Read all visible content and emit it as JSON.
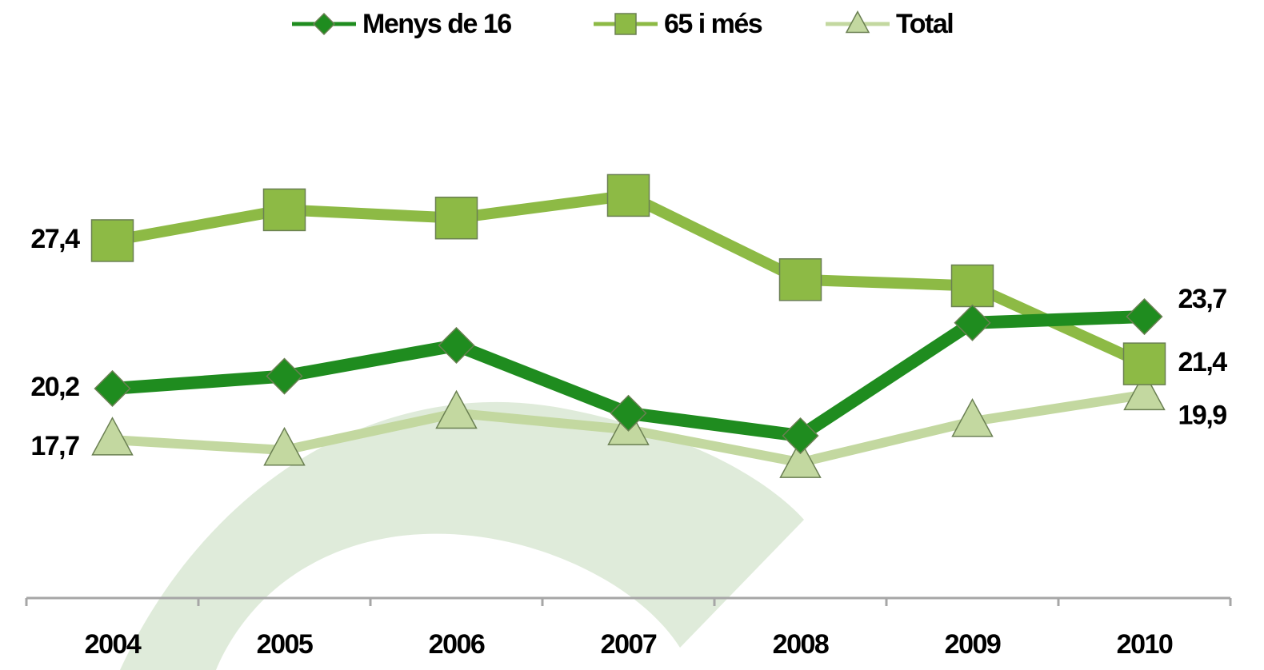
{
  "chart_data": {
    "type": "line",
    "categories": [
      "2004",
      "2005",
      "2006",
      "2007",
      "2008",
      "2009",
      "2010"
    ],
    "ylim": [
      10,
      36
    ],
    "series": [
      {
        "name": "Menys de 16",
        "color": "#1f8c1f",
        "marker": "diamond",
        "values": [
          20.2,
          20.8,
          22.3,
          19.0,
          17.9,
          23.4,
          23.7
        ],
        "value_labels": [
          "20,2",
          null,
          null,
          null,
          null,
          null,
          "23,7"
        ]
      },
      {
        "name": "65 i més",
        "color": "#8dba45",
        "marker": "square",
        "values": [
          27.4,
          28.9,
          28.5,
          29.6,
          25.5,
          25.2,
          21.4
        ],
        "value_labels": [
          "27,4",
          null,
          null,
          null,
          null,
          null,
          "21,4"
        ]
      },
      {
        "name": "Total",
        "color": "#c3d8a0",
        "marker": "triangle",
        "values": [
          17.7,
          17.2,
          19.0,
          18.2,
          16.6,
          18.6,
          19.9
        ],
        "value_labels": [
          "17,7",
          null,
          null,
          null,
          null,
          null,
          "19,9"
        ]
      }
    ]
  }
}
